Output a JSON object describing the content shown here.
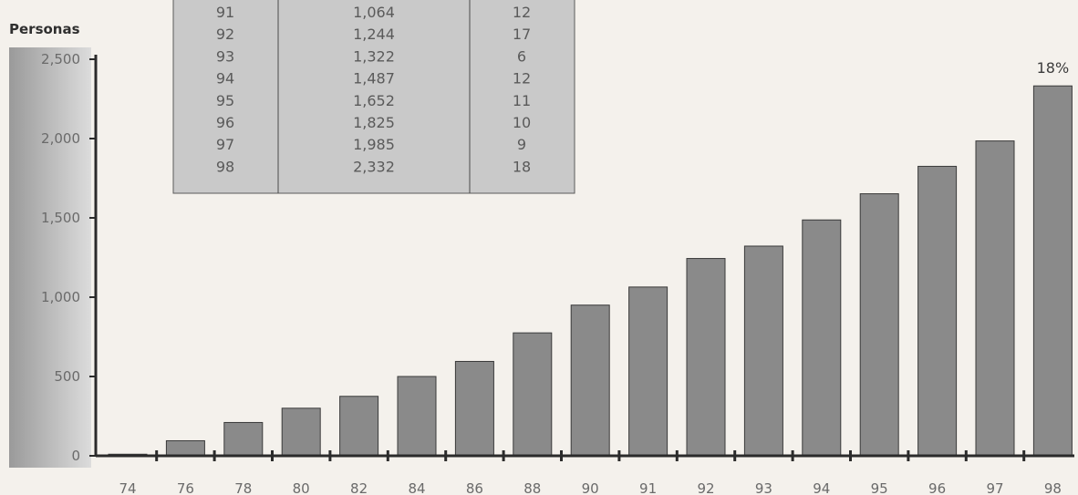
{
  "chart_data": {
    "type": "bar",
    "ylabel": "Personas",
    "ylim": [
      0,
      2500
    ],
    "yticks": [
      "2,500",
      "2,000",
      "1,500",
      "1,000",
      "500",
      "0"
    ],
    "categories": [
      "74",
      "76",
      "78",
      "80",
      "82",
      "84",
      "86",
      "88",
      "90",
      "91",
      "92",
      "93",
      "94",
      "95",
      "96",
      "97",
      "98"
    ],
    "values": [
      10,
      95,
      210,
      300,
      375,
      500,
      595,
      775,
      950,
      1064,
      1244,
      1322,
      1487,
      1652,
      1825,
      1985,
      2332
    ],
    "annotation": {
      "category": "98",
      "text": "18%"
    },
    "colors": {
      "bar": "#8a8a8a",
      "bar_edge": "#3a3a3a",
      "axis": "#2b2b2b",
      "panel": "#c8c8c8",
      "table_bg": "#c9c9c9"
    }
  },
  "table": {
    "rows": [
      [
        "91",
        "1,064",
        "12"
      ],
      [
        "92",
        "1,244",
        "17"
      ],
      [
        "93",
        "1,322",
        "6"
      ],
      [
        "94",
        "1,487",
        "12"
      ],
      [
        "95",
        "1,652",
        "11"
      ],
      [
        "96",
        "1,825",
        "10"
      ],
      [
        "97",
        "1,985",
        "9"
      ],
      [
        "98",
        "2,332",
        "18"
      ]
    ]
  }
}
